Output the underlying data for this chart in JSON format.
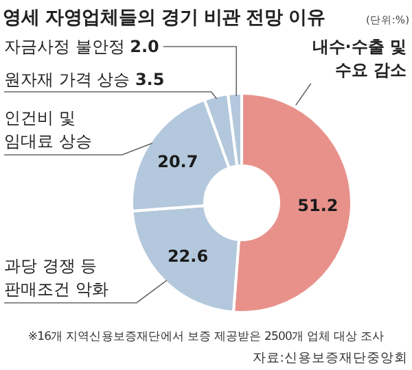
{
  "chart_data": {
    "type": "donut",
    "title": "영세 자영업체들의 경기 비관 전망 이유",
    "subtitle": "(단위:%)",
    "categories": [
      "내수·수출 및 수요 감소",
      "과당 경쟁 등 판매조건 악화",
      "인건비 및 임대료 상승",
      "원자재 가격 상승",
      "자금사정 불안정"
    ],
    "values": [
      51.2,
      22.6,
      20.7,
      3.5,
      2.0
    ],
    "value_labels": [
      "51.2",
      "22.6",
      "20.7",
      "3.5",
      "2.0"
    ],
    "colors": [
      "#e8918b",
      "#b3c8dc",
      "#b3c8dc",
      "#b3c8dc",
      "#b3c8dc"
    ],
    "annotations": [
      "※16개 지역신용보증재단에서 보증 제공받은 2500개 업체 대상 조사",
      "자료:신용보증재단중앙회"
    ]
  }
}
